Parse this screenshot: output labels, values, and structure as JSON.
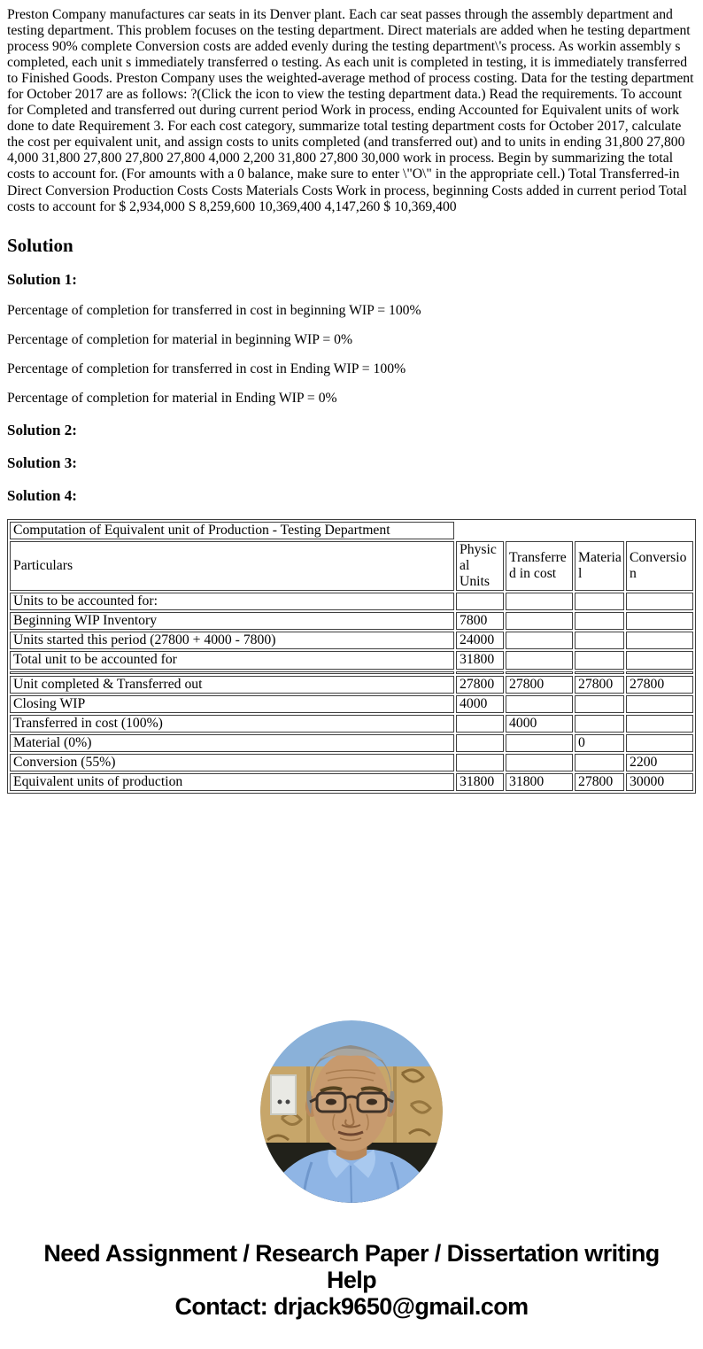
{
  "intro": "Preston Company manufactures car seats in its Denver plant. Each car seat passes through the assembly department and testing department. This problem focuses on the testing department. Direct materials are added when he testing department process 90% complete Conversion costs are added evenly during the testing department\\'s process. As workin assembly s completed, each unit s immediately transferred o testing. As each unit is completed in testing, it is immediately transferred to Finished Goods. Preston Company uses the weighted-average method of process costing. Data for the testing department for October 2017 are as follows: ?(Click the icon to view the testing department data.) Read the requirements. To account for Completed and transferred out during current period Work in process, ending Accounted for Equivalent units of work done to date Requirement 3. For each cost category, summarize total testing department costs for October 2017, calculate the cost per equivalent unit, and assign costs to units completed (and transferred out) and to units in ending 31,800 27,800 4,000 31,800 27,800 27,800 27,800 4,000 2,200 31,800 27,800 30,000 work in process. Begin by summarizing the total costs to account for. (For amounts with a 0 balance, make sure to enter \\\"O\\\" in the appropriate cell.) Total Transferred-in Direct Conversion Production Costs Costs Materials Costs Work in process, beginning Costs added in current period Total costs to account for $ 2,934,000 S 8,259,600 10,369,400 4,147,260 $ 10,369,400",
  "headings": {
    "solution": "Solution",
    "s1": "Solution 1:",
    "s2": "Solution 2:",
    "s3": "Solution 3:",
    "s4": "Solution 4:"
  },
  "solution1": {
    "lines": [
      "Percentage of completion for transferred in cost in beginning WIP = 100%",
      "Percentage of completion for material in beginning WIP = 0%",
      "Percentage of completion for transferred in cost in Ending WIP = 100%",
      "Percentage of completion for material in Ending WIP = 0%"
    ]
  },
  "table": {
    "title": "Computation of Equivalent unit of Production - Testing Department",
    "columns": [
      "Particulars",
      "Physical Units",
      "Transferred in cost",
      "Material",
      "Conversion"
    ],
    "rows": [
      {
        "spacer": false,
        "cells": [
          "Units to be accounted for:",
          "",
          "",
          "",
          ""
        ]
      },
      {
        "spacer": false,
        "cells": [
          "Beginning WIP Inventory",
          "7800",
          "",
          "",
          ""
        ]
      },
      {
        "spacer": false,
        "cells": [
          "Units started this period (27800 + 4000 - 7800)",
          "24000",
          "",
          "",
          ""
        ]
      },
      {
        "spacer": false,
        "cells": [
          "Total unit to be accounted for",
          "31800",
          "",
          "",
          ""
        ]
      },
      {
        "spacer": true,
        "cells": [
          "",
          "",
          "",
          "",
          ""
        ]
      },
      {
        "spacer": false,
        "cells": [
          "Unit completed & Transferred out",
          "27800",
          "27800",
          "27800",
          "27800"
        ]
      },
      {
        "spacer": false,
        "cells": [
          "Closing WIP",
          "4000",
          "",
          "",
          ""
        ]
      },
      {
        "spacer": false,
        "cells": [
          "Transferred in cost (100%)",
          "",
          "4000",
          "",
          ""
        ]
      },
      {
        "spacer": false,
        "cells": [
          "Material (0%)",
          "",
          "",
          "0",
          ""
        ]
      },
      {
        "spacer": false,
        "cells": [
          "Conversion (55%)",
          "",
          "",
          "",
          "2200"
        ]
      },
      {
        "spacer": false,
        "cells": [
          "Equivalent units of production",
          "31800",
          "31800",
          "27800",
          "30000"
        ]
      }
    ]
  },
  "footer": {
    "help_text": "Need Assignment / Research Paper / Dissertation writing Help",
    "contact_text": "Contact: drjack9650@gmail.com"
  },
  "colors": {
    "text": "#000000",
    "table_border": "#3f3f3f",
    "shirt_blue": "#8fb5e5",
    "wall_tan": "#c7a66a",
    "sky_blue": "#8ab1d9"
  }
}
